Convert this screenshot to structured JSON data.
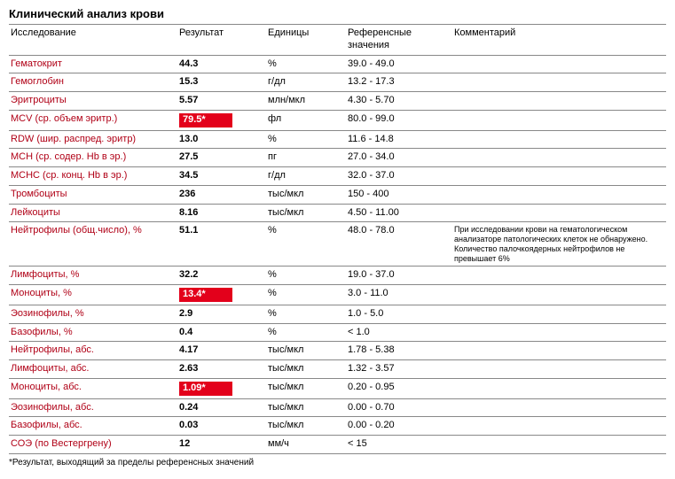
{
  "title": "Клинический анализ крови",
  "columns": [
    "Исследование",
    "Результат",
    "Единицы",
    "Референсные значения",
    "Комментарий"
  ],
  "footnote": "*Результат, выходящий за пределы референсных значений",
  "colors": {
    "name_text": "#b00016",
    "flag_bg": "#e3001b",
    "flag_text": "#ffffff",
    "border": "#888888",
    "text": "#000000",
    "background": "#ffffff"
  },
  "rows": [
    {
      "name": "Гематокрит",
      "result": "44.3",
      "flagged": false,
      "units": "%",
      "ref": "39.0 - 49.0",
      "comment": ""
    },
    {
      "name": "Гемоглобин",
      "result": "15.3",
      "flagged": false,
      "units": "г/дл",
      "ref": "13.2 - 17.3",
      "comment": ""
    },
    {
      "name": "Эритроциты",
      "result": "5.57",
      "flagged": false,
      "units": "млн/мкл",
      "ref": "4.30 - 5.70",
      "comment": ""
    },
    {
      "name": "MCV (ср. объем эритр.)",
      "result": "79.5*",
      "flagged": true,
      "units": "фл",
      "ref": "80.0 - 99.0",
      "comment": ""
    },
    {
      "name": "RDW (шир. распред. эритр)",
      "result": "13.0",
      "flagged": false,
      "units": "%",
      "ref": "11.6 - 14.8",
      "comment": ""
    },
    {
      "name": "MCH (ср. содер. Hb в эр.)",
      "result": "27.5",
      "flagged": false,
      "units": "пг",
      "ref": "27.0 - 34.0",
      "comment": ""
    },
    {
      "name": "MCHC (ср. конц. Hb в эр.)",
      "result": "34.5",
      "flagged": false,
      "units": "г/дл",
      "ref": "32.0 - 37.0",
      "comment": ""
    },
    {
      "name": "Тромбоциты",
      "result": "236",
      "flagged": false,
      "units": "тыс/мкл",
      "ref": "150 - 400",
      "comment": ""
    },
    {
      "name": "Лейкоциты",
      "result": "8.16",
      "flagged": false,
      "units": "тыс/мкл",
      "ref": "4.50 - 11.00",
      "comment": ""
    },
    {
      "name": "Нейтрофилы (общ.число), %",
      "result": "51.1",
      "flagged": false,
      "units": "%",
      "ref": "48.0 - 78.0",
      "comment": "При исследовании крови на гематологическом анализаторе патологических клеток не обнаружено. Количество палочкоядерных нейтрофилов не превышает 6%"
    },
    {
      "name": "Лимфоциты, %",
      "result": "32.2",
      "flagged": false,
      "units": "%",
      "ref": "19.0 - 37.0",
      "comment": ""
    },
    {
      "name": "Моноциты, %",
      "result": "13.4*",
      "flagged": true,
      "units": "%",
      "ref": "3.0 - 11.0",
      "comment": ""
    },
    {
      "name": "Эозинофилы, %",
      "result": "2.9",
      "flagged": false,
      "units": "%",
      "ref": "1.0 - 5.0",
      "comment": ""
    },
    {
      "name": "Базофилы, %",
      "result": "0.4",
      "flagged": false,
      "units": "%",
      "ref": "< 1.0",
      "comment": ""
    },
    {
      "name": "Нейтрофилы, абс.",
      "result": "4.17",
      "flagged": false,
      "units": "тыс/мкл",
      "ref": "1.78 - 5.38",
      "comment": ""
    },
    {
      "name": "Лимфоциты, абс.",
      "result": "2.63",
      "flagged": false,
      "units": "тыс/мкл",
      "ref": "1.32 - 3.57",
      "comment": ""
    },
    {
      "name": "Моноциты, абс.",
      "result": "1.09*",
      "flagged": true,
      "units": "тыс/мкл",
      "ref": "0.20 - 0.95",
      "comment": ""
    },
    {
      "name": "Эозинофилы, абс.",
      "result": "0.24",
      "flagged": false,
      "units": "тыс/мкл",
      "ref": "0.00 - 0.70",
      "comment": ""
    },
    {
      "name": "Базофилы, абс.",
      "result": "0.03",
      "flagged": false,
      "units": "тыс/мкл",
      "ref": "0.00 - 0.20",
      "comment": ""
    },
    {
      "name": "СОЭ (по Вестергрену)",
      "result": "12",
      "flagged": false,
      "units": "мм/ч",
      "ref": "< 15",
      "comment": ""
    }
  ]
}
